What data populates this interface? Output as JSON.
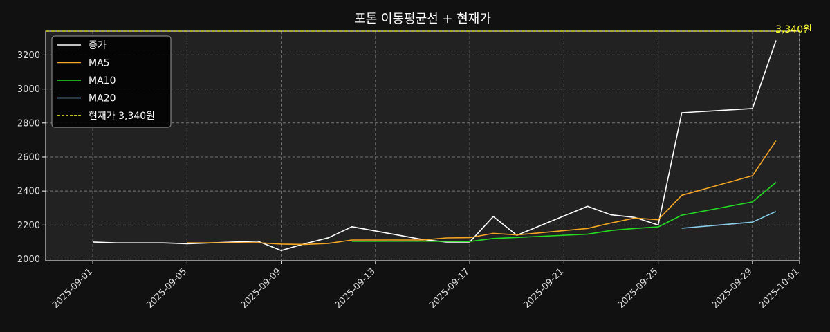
{
  "chart_data": {
    "type": "line",
    "title": "포톤 이동평균선 + 현재가",
    "xlabel": "",
    "ylabel": "",
    "x_ticks": [
      "2025-09-01",
      "2025-09-05",
      "2025-09-09",
      "2025-09-13",
      "2025-09-17",
      "2025-09-21",
      "2025-09-25",
      "2025-09-29",
      "2025-10-01"
    ],
    "y_ticks": [
      2000,
      2200,
      2400,
      2600,
      2800,
      3000,
      3200
    ],
    "xlim": [
      "2025-08-30",
      "2025-10-01"
    ],
    "ylim": [
      1990,
      3340
    ],
    "grid": true,
    "legend_position": "top-left",
    "background": "#222222",
    "series": [
      {
        "name": "종가",
        "color": "#ffffff",
        "points": [
          [
            "2025-09-01",
            2100
          ],
          [
            "2025-09-02",
            2095
          ],
          [
            "2025-09-03",
            2095
          ],
          [
            "2025-09-04",
            2095
          ],
          [
            "2025-09-05",
            2090
          ],
          [
            "2025-09-08",
            2105
          ],
          [
            "2025-09-09",
            2050
          ],
          [
            "2025-09-10",
            2090
          ],
          [
            "2025-09-11",
            2125
          ],
          [
            "2025-09-12",
            2190
          ],
          [
            "2025-09-15",
            2115
          ],
          [
            "2025-09-16",
            2100
          ],
          [
            "2025-09-17",
            2100
          ],
          [
            "2025-09-18",
            2250
          ],
          [
            "2025-09-19",
            2140
          ],
          [
            "2025-09-22",
            2310
          ],
          [
            "2025-09-23",
            2260
          ],
          [
            "2025-09-24",
            2245
          ],
          [
            "2025-09-25",
            2200
          ],
          [
            "2025-09-26",
            2860
          ],
          [
            "2025-09-29",
            2885
          ],
          [
            "2025-09-30",
            3285
          ]
        ]
      },
      {
        "name": "MA5",
        "color": "#f5a623",
        "points": [
          [
            "2025-09-05",
            2095
          ],
          [
            "2025-09-08",
            2096
          ],
          [
            "2025-09-09",
            2088
          ],
          [
            "2025-09-10",
            2086
          ],
          [
            "2025-09-11",
            2092
          ],
          [
            "2025-09-12",
            2112
          ],
          [
            "2025-09-15",
            2112
          ],
          [
            "2025-09-16",
            2124
          ],
          [
            "2025-09-17",
            2126
          ],
          [
            "2025-09-18",
            2151
          ],
          [
            "2025-09-19",
            2142
          ],
          [
            "2025-09-22",
            2180
          ],
          [
            "2025-09-23",
            2212
          ],
          [
            "2025-09-24",
            2241
          ],
          [
            "2025-09-25",
            2231
          ],
          [
            "2025-09-26",
            2375
          ],
          [
            "2025-09-29",
            2490
          ],
          [
            "2025-09-30",
            2695
          ]
        ]
      },
      {
        "name": "MA10",
        "color": "#22dd22",
        "points": [
          [
            "2025-09-12",
            2104
          ],
          [
            "2025-09-15",
            2105
          ],
          [
            "2025-09-16",
            2104
          ],
          [
            "2025-09-17",
            2103
          ],
          [
            "2025-09-18",
            2121
          ],
          [
            "2025-09-19",
            2127
          ],
          [
            "2025-09-22",
            2146
          ],
          [
            "2025-09-23",
            2168
          ],
          [
            "2025-09-24",
            2180
          ],
          [
            "2025-09-25",
            2189
          ],
          [
            "2025-09-26",
            2258
          ],
          [
            "2025-09-29",
            2336
          ],
          [
            "2025-09-30",
            2451
          ]
        ]
      },
      {
        "name": "MA20",
        "color": "#87ceeb",
        "points": [
          [
            "2025-09-26",
            2181
          ],
          [
            "2025-09-29",
            2217
          ],
          [
            "2025-09-30",
            2280
          ]
        ]
      }
    ],
    "reference_line": {
      "name": "현재가 3,340원",
      "value": 3340,
      "color": "#ffff33",
      "style": "dashed",
      "annotation": "3,340원"
    }
  }
}
